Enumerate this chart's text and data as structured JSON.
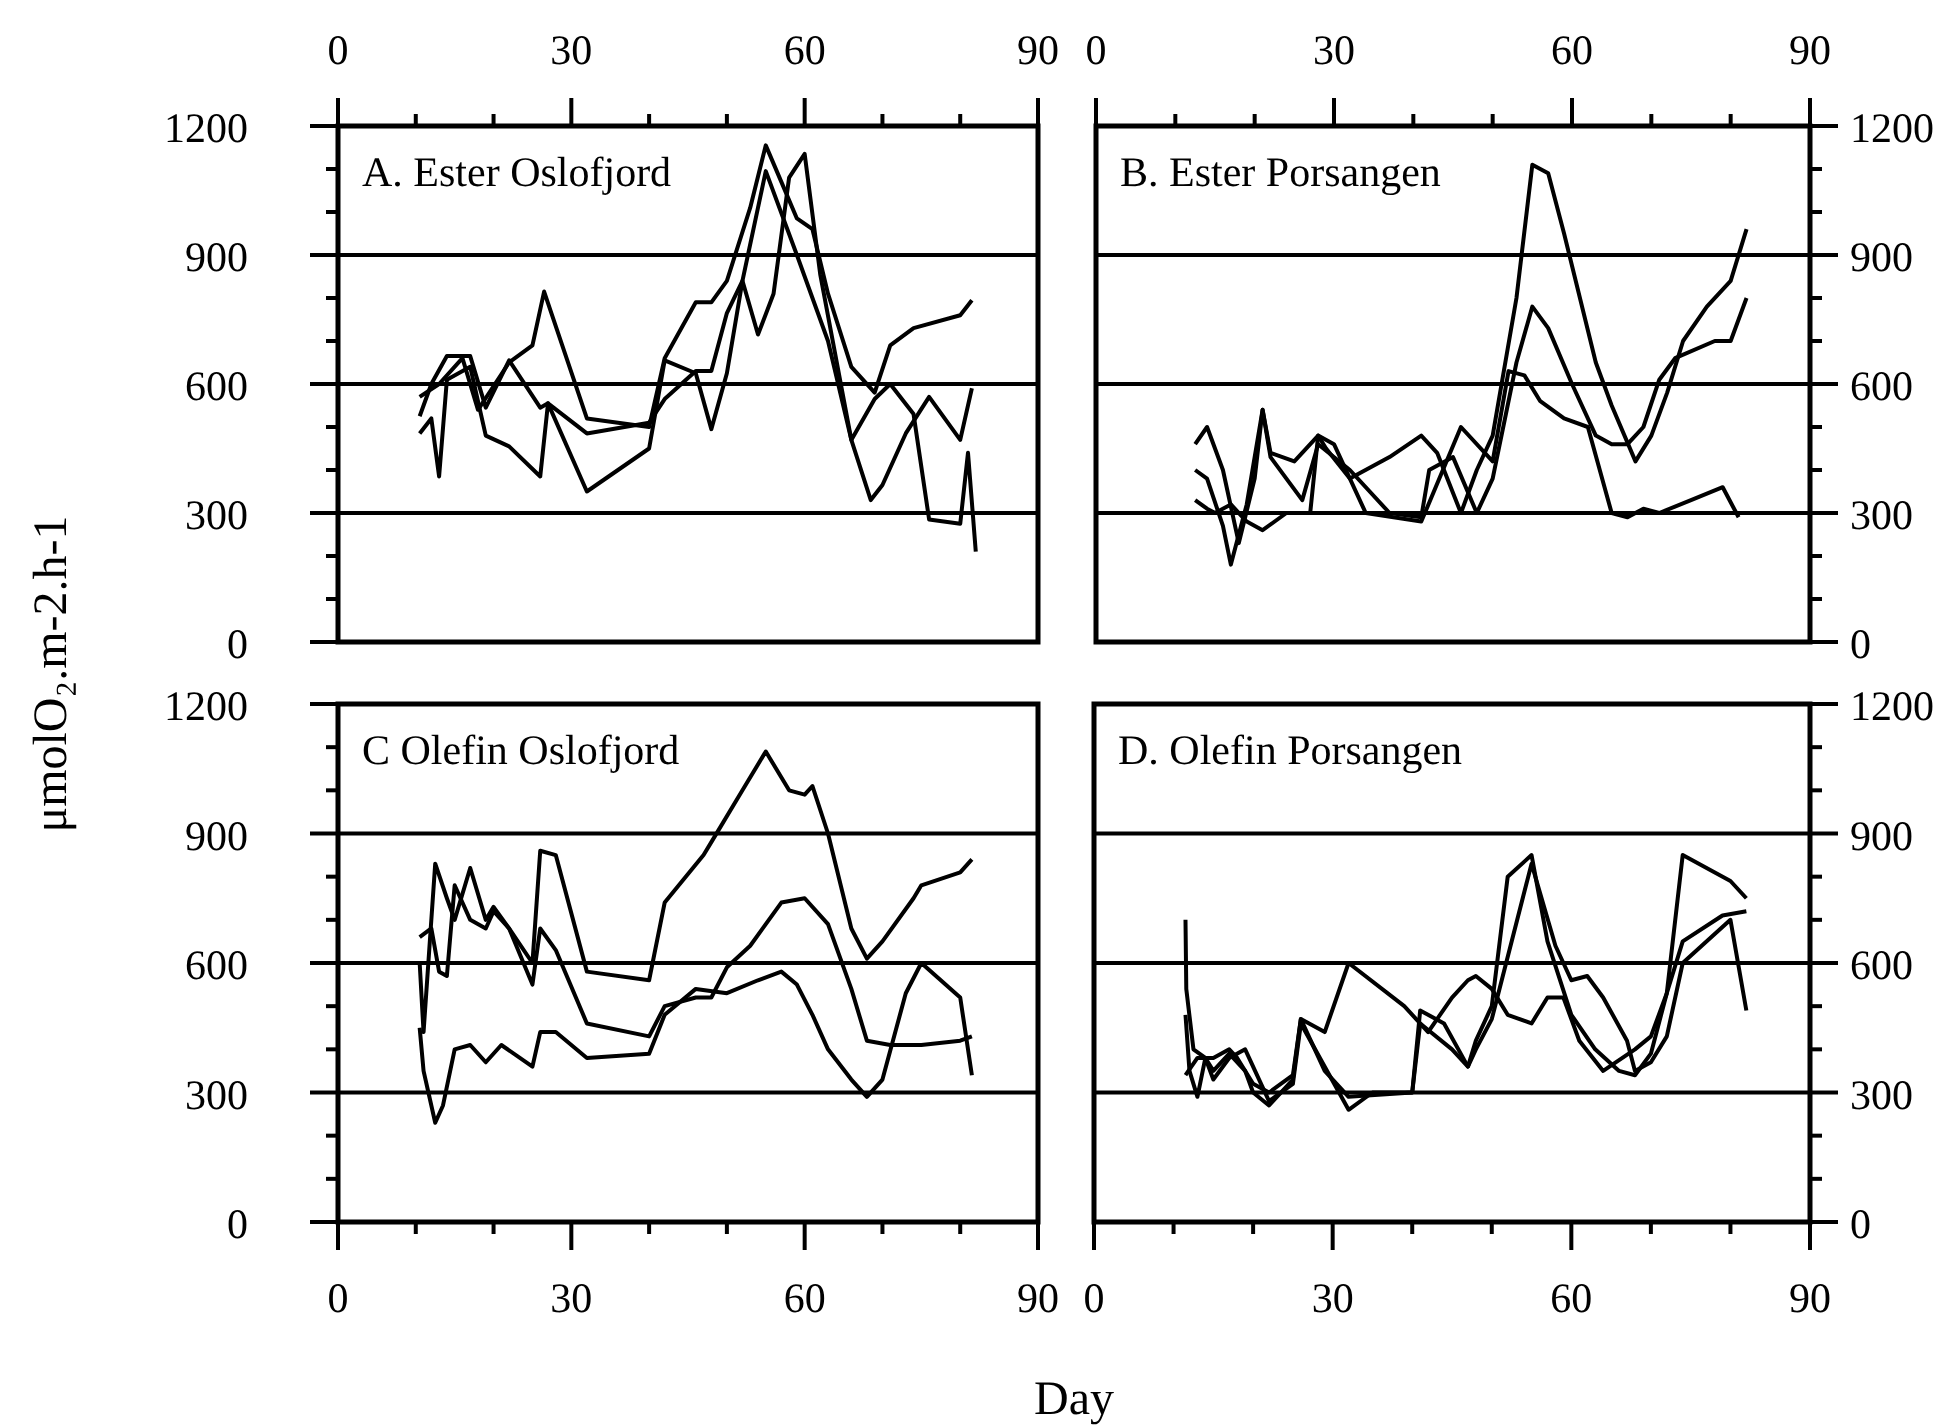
{
  "chart_data": [
    {
      "type": "line",
      "title": "A. Ester Oslofjord",
      "ylabel": "μmolO₂.m-2.h-1",
      "xlim": [
        0,
        90
      ],
      "ylim": [
        0,
        1200
      ],
      "grid": "y",
      "marker": "none",
      "line_style": "solid",
      "xticks": [
        0,
        {
          "value": 10,
          "label": null
        },
        {
          "value": 20,
          "label": null
        },
        30,
        {
          "value": 40,
          "label": null
        },
        {
          "value": 50,
          "label": null
        },
        60,
        {
          "value": 70,
          "label": null
        },
        {
          "value": 80,
          "label": null
        },
        90
      ],
      "yticks": [
        0,
        {
          "value": 100,
          "label": null
        },
        {
          "value": 200,
          "label": null
        },
        300,
        {
          "value": 400,
          "label": null
        },
        {
          "value": 500,
          "label": null
        },
        600,
        {
          "value": 700,
          "label": null
        },
        {
          "value": 800,
          "label": null
        },
        900,
        {
          "value": 1000,
          "label": null
        },
        {
          "value": 1100,
          "label": null
        },
        1200
      ],
      "series": [
        {
          "color": "#000000",
          "x": [
            10.5,
            13,
            16,
            18,
            22,
            25,
            26.5,
            32,
            40,
            42,
            46,
            48,
            50,
            53,
            55,
            57,
            59,
            61,
            63,
            66,
            69,
            71,
            74,
            80,
            81.5
          ],
          "values": [
            570,
            600,
            660,
            540,
            650,
            690,
            815,
            520,
            500,
            660,
            790,
            790,
            840,
            1010,
            1155,
            1070,
            985,
            960,
            810,
            640,
            580,
            690,
            730,
            760,
            795
          ]
        },
        {
          "color": "#000000",
          "x": [
            10.5,
            12,
            14,
            17,
            19,
            22,
            26,
            27,
            32,
            40,
            42,
            46,
            48,
            50,
            52,
            55,
            59,
            63,
            66,
            68.5,
            70,
            73,
            76,
            80,
            81.5
          ],
          "values": [
            525,
            600,
            665,
            665,
            545,
            655,
            545,
            555,
            485,
            510,
            565,
            630,
            630,
            765,
            840,
            1095,
            900,
            700,
            470,
            330,
            365,
            485,
            570,
            470,
            590
          ]
        },
        {
          "color": "#000000",
          "x": [
            10.5,
            12,
            13,
            14,
            17,
            19,
            22,
            26,
            27,
            32,
            40,
            42,
            46,
            48,
            50,
            52,
            54,
            56,
            58,
            60,
            62,
            66,
            69,
            71,
            74,
            76,
            80,
            81,
            82
          ],
          "values": [
            485,
            520,
            385,
            610,
            640,
            480,
            455,
            385,
            555,
            350,
            450,
            655,
            625,
            495,
            625,
            840,
            715,
            810,
            1080,
            1135,
            855,
            470,
            565,
            600,
            530,
            285,
            275,
            440,
            210
          ]
        }
      ]
    },
    {
      "type": "line",
      "title": "B. Ester Porsangen",
      "xlim": [
        0,
        90
      ],
      "ylim": [
        0,
        1200
      ],
      "grid": "y",
      "marker": "none",
      "line_style": "solid",
      "xticks": [
        0,
        {
          "value": 10,
          "label": null
        },
        {
          "value": 20,
          "label": null
        },
        30,
        {
          "value": 40,
          "label": null
        },
        {
          "value": 50,
          "label": null
        },
        60,
        {
          "value": 70,
          "label": null
        },
        {
          "value": 80,
          "label": null
        },
        90
      ],
      "yticks": [
        0,
        {
          "value": 100,
          "label": null
        },
        {
          "value": 200,
          "label": null
        },
        300,
        {
          "value": 400,
          "label": null
        },
        {
          "value": 500,
          "label": null
        },
        600,
        {
          "value": 700,
          "label": null
        },
        {
          "value": 800,
          "label": null
        },
        900,
        {
          "value": 1000,
          "label": null
        },
        {
          "value": 1100,
          "label": null
        },
        1200
      ],
      "series": [
        {
          "color": "#000000",
          "x": [
            12.5,
            14,
            16,
            18,
            20,
            21,
            22,
            25,
            28,
            29,
            32,
            37,
            41,
            43,
            46,
            48,
            50,
            53,
            55,
            57,
            59,
            63,
            65,
            68,
            70,
            72,
            74,
            77,
            80,
            82
          ],
          "values": [
            460,
            500,
            400,
            230,
            380,
            540,
            440,
            420,
            480,
            450,
            380,
            430,
            480,
            440,
            300,
            400,
            480,
            800,
            1110,
            1090,
            950,
            650,
            550,
            420,
            480,
            580,
            700,
            780,
            840,
            960
          ]
        },
        {
          "color": "#000000",
          "x": [
            12.5,
            14,
            16,
            17,
            19,
            21,
            22,
            26,
            28,
            32,
            37,
            41,
            42,
            45,
            48,
            50,
            53,
            55,
            57,
            60,
            63,
            65,
            67,
            69,
            71,
            73,
            78,
            80,
            82
          ],
          "values": [
            400,
            380,
            270,
            180,
            320,
            540,
            430,
            330,
            460,
            400,
            300,
            290,
            400,
            430,
            300,
            380,
            650,
            780,
            730,
            600,
            480,
            460,
            460,
            500,
            610,
            660,
            700,
            700,
            800
          ]
        },
        {
          "color": "#000000",
          "x": [
            12.5,
            14,
            15,
            17,
            19,
            21,
            24,
            27,
            28,
            30,
            34,
            41,
            46,
            50,
            52,
            54,
            56,
            59,
            62,
            65,
            67,
            69,
            71,
            75,
            79,
            81
          ],
          "values": [
            330,
            310,
            300,
            320,
            280,
            260,
            300,
            300,
            480,
            460,
            300,
            280,
            500,
            420,
            630,
            620,
            560,
            520,
            500,
            300,
            290,
            310,
            300,
            330,
            360,
            290
          ]
        }
      ]
    },
    {
      "type": "line",
      "title": "C Olefin Oslofjord",
      "xlabel": "Day",
      "xlim": [
        0,
        90
      ],
      "ylim": [
        0,
        1200
      ],
      "grid": "y",
      "marker": "none",
      "line_style": "solid",
      "xticks": [
        0,
        {
          "value": 10,
          "label": null
        },
        {
          "value": 20,
          "label": null
        },
        30,
        {
          "value": 40,
          "label": null
        },
        {
          "value": 50,
          "label": null
        },
        60,
        {
          "value": 70,
          "label": null
        },
        {
          "value": 80,
          "label": null
        },
        90
      ],
      "yticks": [
        0,
        {
          "value": 100,
          "label": null
        },
        {
          "value": 200,
          "label": null
        },
        300,
        {
          "value": 400,
          "label": null
        },
        {
          "value": 500,
          "label": null
        },
        600,
        {
          "value": 700,
          "label": null
        },
        {
          "value": 800,
          "label": null
        },
        900,
        {
          "value": 1000,
          "label": null
        },
        {
          "value": 1100,
          "label": null
        },
        1200
      ],
      "series": [
        {
          "color": "#000000",
          "x": [
            10.5,
            12,
            13,
            14,
            15,
            17,
            19,
            20,
            22,
            25,
            26,
            28,
            32,
            40,
            42,
            47,
            48,
            52,
            55,
            58,
            60,
            61,
            63,
            66,
            68,
            70,
            74,
            75,
            80,
            81.5
          ],
          "values": [
            660,
            680,
            580,
            570,
            780,
            700,
            680,
            720,
            680,
            600,
            860,
            850,
            580,
            560,
            740,
            850,
            880,
            1000,
            1090,
            1000,
            990,
            1010,
            900,
            680,
            610,
            650,
            750,
            780,
            810,
            840
          ]
        },
        {
          "color": "#000000",
          "x": [
            10.5,
            11,
            12.5,
            14,
            15,
            17,
            19,
            20,
            22,
            25,
            26,
            28,
            32,
            40,
            42,
            46,
            48,
            50,
            53,
            57,
            60,
            63,
            66,
            68,
            71,
            75,
            80,
            81.5
          ],
          "values": [
            600,
            440,
            830,
            750,
            700,
            820,
            700,
            730,
            680,
            550,
            680,
            630,
            460,
            430,
            500,
            520,
            520,
            590,
            640,
            740,
            750,
            690,
            540,
            420,
            410,
            410,
            420,
            430
          ]
        },
        {
          "color": "#000000",
          "x": [
            10.5,
            11,
            12.5,
            13.5,
            15,
            17,
            19,
            21,
            25,
            26,
            28,
            32,
            40,
            42,
            46,
            50,
            54,
            57,
            59,
            61,
            63,
            66,
            68,
            70,
            73,
            75,
            80,
            81.5
          ],
          "values": [
            450,
            350,
            230,
            270,
            400,
            410,
            370,
            410,
            360,
            440,
            440,
            380,
            390,
            480,
            540,
            530,
            560,
            580,
            550,
            480,
            400,
            330,
            290,
            330,
            530,
            600,
            520,
            340
          ]
        }
      ]
    },
    {
      "type": "line",
      "title": "D. Olefin Porsangen",
      "xlim": [
        0,
        90
      ],
      "ylim": [
        0,
        1200
      ],
      "grid": "y",
      "marker": "none",
      "line_style": "solid",
      "xticks": [
        0,
        {
          "value": 10,
          "label": null
        },
        {
          "value": 20,
          "label": null
        },
        30,
        {
          "value": 40,
          "label": null
        },
        {
          "value": 50,
          "label": null
        },
        60,
        {
          "value": 70,
          "label": null
        },
        {
          "value": 80,
          "label": null
        },
        90
      ],
      "yticks": [
        0,
        {
          "value": 100,
          "label": null
        },
        {
          "value": 200,
          "label": null
        },
        300,
        {
          "value": 400,
          "label": null
        },
        {
          "value": 500,
          "label": null
        },
        600,
        {
          "value": 700,
          "label": null
        },
        {
          "value": 800,
          "label": null
        },
        900,
        {
          "value": 1000,
          "label": null
        },
        {
          "value": 1100,
          "label": null
        },
        1200
      ],
      "series": [
        {
          "color": "#000000",
          "x": [
            11.5,
            11.6,
            12.5,
            14,
            15,
            17,
            19,
            21,
            22,
            25,
            26,
            32,
            35,
            40,
            41,
            45,
            47,
            48,
            50,
            52,
            55,
            57,
            60,
            63,
            66,
            68,
            70,
            72,
            74,
            79,
            82
          ],
          "values": [
            700,
            540,
            400,
            380,
            330,
            380,
            400,
            320,
            280,
            320,
            460,
            260,
            300,
            300,
            460,
            400,
            360,
            420,
            500,
            800,
            850,
            650,
            480,
            400,
            350,
            340,
            390,
            530,
            650,
            710,
            720
          ]
        },
        {
          "color": "#000000",
          "x": [
            11.5,
            12,
            13,
            14,
            15,
            17,
            19,
            20,
            22,
            25,
            26,
            29,
            32,
            40,
            41,
            44,
            47,
            48,
            50,
            55,
            58,
            60,
            62,
            64,
            67,
            68,
            70,
            72,
            74,
            80,
            82
          ],
          "values": [
            480,
            350,
            290,
            380,
            350,
            390,
            350,
            300,
            270,
            330,
            470,
            350,
            290,
            300,
            490,
            460,
            360,
            400,
            470,
            830,
            640,
            560,
            570,
            520,
            420,
            350,
            370,
            430,
            600,
            700,
            490
          ]
        },
        {
          "color": "#000000",
          "x": [
            11.5,
            13,
            15,
            17,
            18,
            20,
            22,
            25,
            26,
            29,
            32,
            39,
            42,
            45,
            47,
            48,
            50,
            52,
            55,
            57,
            59,
            61,
            64,
            68,
            70,
            72,
            74,
            80,
            82
          ],
          "values": [
            340,
            380,
            380,
            400,
            380,
            320,
            300,
            340,
            470,
            440,
            600,
            500,
            440,
            520,
            560,
            570,
            540,
            480,
            460,
            520,
            520,
            420,
            350,
            400,
            430,
            530,
            850,
            790,
            750
          ]
        }
      ]
    }
  ]
}
